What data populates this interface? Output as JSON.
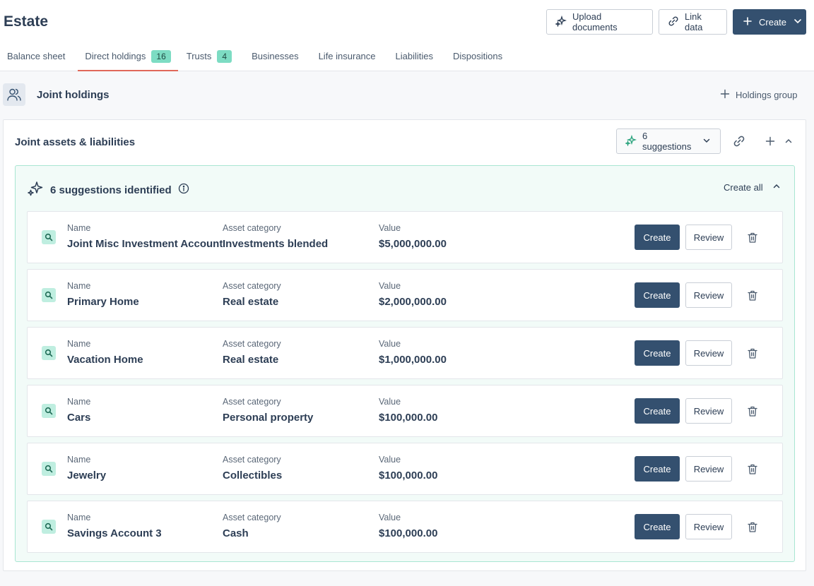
{
  "page": {
    "title": "Estate"
  },
  "header_buttons": {
    "upload": "Upload documents",
    "link": "Link data",
    "create": "Create"
  },
  "tabs": [
    {
      "label": "Balance sheet",
      "badge": null,
      "active": false
    },
    {
      "label": "Direct holdings",
      "badge": "16",
      "active": true
    },
    {
      "label": "Trusts",
      "badge": "4",
      "active": false
    },
    {
      "label": "Businesses",
      "badge": null,
      "active": false
    },
    {
      "label": "Life insurance",
      "badge": null,
      "active": false
    },
    {
      "label": "Liabilities",
      "badge": null,
      "active": false
    },
    {
      "label": "Dispositions",
      "badge": null,
      "active": false
    }
  ],
  "joint": {
    "title": "Joint holdings",
    "holdings_group": "Holdings group"
  },
  "panel": {
    "title": "Joint assets & liabilities",
    "suggestions_button": "6 suggestions"
  },
  "suggestions": {
    "heading": "6 suggestions identified",
    "create_all": "Create all",
    "labels": {
      "name": "Name",
      "category": "Asset category",
      "value": "Value"
    },
    "create_label": "Create",
    "review_label": "Review",
    "items": [
      {
        "name": "Joint Misc Investment Account",
        "category": "Investments blended",
        "value": "$5,000,000.00"
      },
      {
        "name": "Primary Home",
        "category": "Real estate",
        "value": "$2,000,000.00"
      },
      {
        "name": "Vacation Home",
        "category": "Real estate",
        "value": "$1,000,000.00"
      },
      {
        "name": "Cars",
        "category": "Personal property",
        "value": "$100,000.00"
      },
      {
        "name": "Jewelry",
        "category": "Collectibles",
        "value": "$100,000.00"
      },
      {
        "name": "Savings Account 3",
        "category": "Cash",
        "value": "$100,000.00"
      }
    ]
  },
  "colors": {
    "primary": "#34506f",
    "accent_tab": "#e0685a",
    "badge": "#7ddcc3",
    "suggest_bg": "#f2fbf8",
    "suggest_border": "#a9e6d2"
  }
}
